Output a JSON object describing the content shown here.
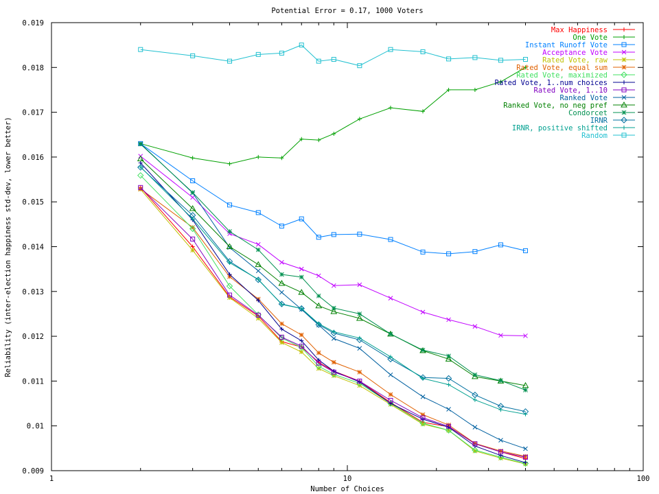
{
  "chart_data": {
    "type": "line",
    "title": "Potential Error = 0.17, 1000 Voters",
    "xlabel": "Number of Choices",
    "ylabel": "Reliability (inter-election happiness std-dev, lower better)",
    "xscale": "log",
    "xlim": [
      1,
      100
    ],
    "ylim": [
      0.009,
      0.019
    ],
    "xticks": [
      1,
      10,
      100
    ],
    "xtick_labels": [
      "1",
      "10",
      "100"
    ],
    "yticks": [
      0.009,
      0.01,
      0.011,
      0.012,
      0.013,
      0.014,
      0.015,
      0.016,
      0.017,
      0.018,
      0.019
    ],
    "ytick_labels": [
      "0.009",
      "0.01",
      "0.011",
      "0.012",
      "0.013",
      "0.014",
      "0.015",
      "0.016",
      "0.017",
      "0.018",
      "0.019"
    ],
    "grid": false,
    "legend_position": "top-right",
    "x": [
      2,
      3,
      4,
      5,
      6,
      7,
      8,
      9,
      11,
      14,
      18,
      22,
      27,
      33,
      40
    ],
    "series": [
      {
        "name": "Max Happiness",
        "color": "#ff0000",
        "marker": "plus",
        "values": [
          0.01532,
          0.014,
          0.01288,
          0.01245,
          0.01188,
          0.01176,
          0.01142,
          0.01122,
          0.011,
          0.01052,
          0.01008,
          0.00998,
          0.0096,
          0.00942,
          0.00927
        ]
      },
      {
        "name": "One Vote",
        "color": "#00a000",
        "marker": "plus",
        "values": [
          0.0163,
          0.01598,
          0.01585,
          0.016,
          0.01598,
          0.0164,
          0.01638,
          0.01652,
          0.01685,
          0.0171,
          0.01702,
          0.0175,
          0.0175,
          0.01768,
          0.018
        ]
      },
      {
        "name": "Instant Runoff Vote",
        "color": "#0080ff",
        "marker": "square",
        "values": [
          0.0163,
          0.01547,
          0.01493,
          0.01476,
          0.01446,
          0.01462,
          0.01421,
          0.01427,
          0.01428,
          0.01416,
          0.01388,
          0.01384,
          0.01389,
          0.01404,
          0.01391
        ]
      },
      {
        "name": "Acceptance Vote",
        "color": "#c000ff",
        "marker": "x",
        "values": [
          0.01602,
          0.0151,
          0.01429,
          0.01405,
          0.01365,
          0.0135,
          0.01335,
          0.01313,
          0.01315,
          0.01285,
          0.01254,
          0.01237,
          0.01222,
          0.01202,
          0.01201
        ]
      },
      {
        "name": "Rated Vote, raw",
        "color": "#c0c000",
        "marker": "star",
        "values": [
          0.01528,
          0.01392,
          0.01286,
          0.0124,
          0.01186,
          0.01165,
          0.01128,
          0.01112,
          0.0109,
          0.01048,
          0.01004,
          0.0099,
          0.00944,
          0.00928,
          0.00915
        ]
      },
      {
        "name": "Rated Vote, equal sum",
        "color": "#e06000",
        "marker": "star",
        "values": [
          0.01529,
          0.01443,
          0.01333,
          0.01283,
          0.01228,
          0.01203,
          0.01163,
          0.01142,
          0.0112,
          0.0107,
          0.01025,
          0.01002,
          0.00961,
          0.00944,
          0.00932
        ]
      },
      {
        "name": "Rated Vote, maximized",
        "color": "#40e060",
        "marker": "diamond",
        "values": [
          0.01559,
          0.0144,
          0.01312,
          0.01248,
          0.01196,
          0.01175,
          0.01133,
          0.01115,
          0.01095,
          0.0105,
          0.01006,
          0.0099,
          0.00946,
          0.0093,
          0.00916
        ]
      },
      {
        "name": "Rated Vote, 1..num choices",
        "color": "#000090",
        "marker": "plus",
        "values": [
          0.01587,
          0.0146,
          0.01338,
          0.0128,
          0.01216,
          0.0119,
          0.01147,
          0.01122,
          0.01098,
          0.0105,
          0.01015,
          0.00997,
          0.00955,
          0.00934,
          0.00918
        ]
      },
      {
        "name": "Rated Vote, 1..10",
        "color": "#8000c0",
        "marker": "square",
        "values": [
          0.01532,
          0.01417,
          0.01292,
          0.01247,
          0.01198,
          0.01178,
          0.0114,
          0.0112,
          0.011,
          0.01057,
          0.01018,
          0.00999,
          0.0096,
          0.00942,
          0.0093
        ]
      },
      {
        "name": "Ranked Vote",
        "color": "#0060a0",
        "marker": "x",
        "values": [
          0.0163,
          0.0152,
          0.01398,
          0.01346,
          0.01298,
          0.0126,
          0.01225,
          0.01195,
          0.01173,
          0.01114,
          0.01065,
          0.01037,
          0.00997,
          0.00968,
          0.00949
        ]
      },
      {
        "name": "Ranked Vote, no neg pref",
        "color": "#008000",
        "marker": "triangle",
        "values": [
          0.01596,
          0.01485,
          0.014,
          0.0136,
          0.01318,
          0.01298,
          0.01268,
          0.01255,
          0.0124,
          0.01205,
          0.01168,
          0.01149,
          0.0111,
          0.011,
          0.0109
        ]
      },
      {
        "name": "Condorcet",
        "color": "#009050",
        "marker": "star",
        "values": [
          0.01629,
          0.01521,
          0.01434,
          0.01393,
          0.01338,
          0.01332,
          0.0129,
          0.01263,
          0.0125,
          0.01205,
          0.01169,
          0.01156,
          0.01114,
          0.01101,
          0.0108
        ]
      },
      {
        "name": "IRNR",
        "color": "#0070a0",
        "marker": "diamond",
        "values": [
          0.01577,
          0.0147,
          0.01367,
          0.01326,
          0.01272,
          0.01262,
          0.01226,
          0.01207,
          0.01192,
          0.01149,
          0.01108,
          0.01106,
          0.01069,
          0.01044,
          0.01032
        ]
      },
      {
        "name": "IRNR, positive shifted",
        "color": "#00a090",
        "marker": "plus",
        "values": [
          0.01578,
          0.01462,
          0.01364,
          0.01327,
          0.01271,
          0.01262,
          0.01228,
          0.0121,
          0.01196,
          0.01154,
          0.01106,
          0.01092,
          0.01058,
          0.01036,
          0.01026
        ]
      },
      {
        "name": "Random",
        "color": "#20c0d0",
        "marker": "square",
        "values": [
          0.0184,
          0.01826,
          0.01814,
          0.01829,
          0.01832,
          0.0185,
          0.01814,
          0.01818,
          0.01804,
          0.0184,
          0.01835,
          0.01819,
          0.01822,
          0.01816,
          0.01818
        ]
      }
    ]
  }
}
